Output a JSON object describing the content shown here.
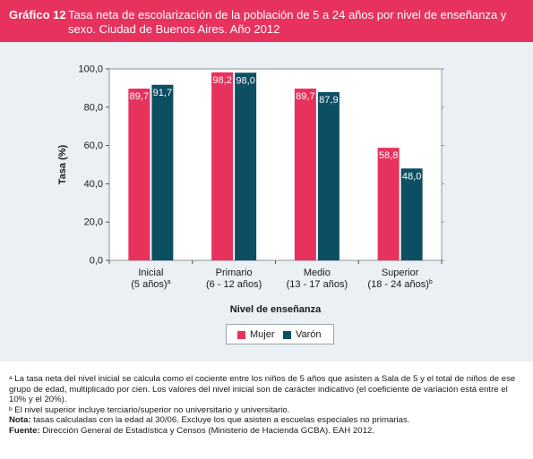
{
  "header": {
    "label": "Gráfico 12",
    "title": "Tasa neta de escolarización de la población de 5 a 24 años por nivel de enseñanza y sexo. Ciudad de Buenos Aires. Año 2012"
  },
  "colors": {
    "mujer": "#e6325d",
    "varon": "#0c4f63",
    "header_bg": "#e6325d",
    "panel_bg": "#eaf0f3"
  },
  "chart_data": {
    "type": "bar",
    "ylabel": "Tasa (%)",
    "xlabel": "Nivel de enseñanza",
    "ylim": [
      0,
      100
    ],
    "yticks": [
      "0,0",
      "20,0",
      "40,0",
      "60,0",
      "80,0",
      "100,0"
    ],
    "categories": [
      {
        "line1": "Inicial",
        "line2": "(5 años)",
        "sup": "a"
      },
      {
        "line1": "Primario",
        "line2": "(6 - 12 años)",
        "sup": ""
      },
      {
        "line1": "Medio",
        "line2": "(13 - 17 años)",
        "sup": ""
      },
      {
        "line1": "Superior",
        "line2": "(18 - 24 años)",
        "sup": "b"
      }
    ],
    "series": [
      {
        "name": "Mujer",
        "values": [
          89.7,
          98.2,
          89.7,
          58.8
        ],
        "labels": [
          "89,7",
          "98,2",
          "89,7",
          "58,8"
        ]
      },
      {
        "name": "Varón",
        "values": [
          91.7,
          98.0,
          87.9,
          48.0
        ],
        "labels": [
          "91,7",
          "98,0",
          "87,9",
          "48,0"
        ]
      }
    ],
    "legend": "bottom",
    "grid": false
  },
  "notes": {
    "a_sup": "a",
    "a_text": " La tasa neta del nivel inicial se calcula como el cociente entre los niños de 5 años que asisten a Sala de 5 y el total de niños de ese grupo de edad, multiplicado por cien. Los valores del nivel inicial son de carácter indicativo (el coeficiente de variación está entre el 10% y el 20%).",
    "b_sup": "b",
    "b_text": " El nivel superior incluye terciario/superior no universitario y universitario.",
    "nota_label": "Nota:",
    "nota_text": " tasas calculadas con la edad al 30/06. Excluye los que asisten a escuelas especiales no primarias.",
    "fuente_label": "Fuente:",
    "fuente_text": " Dirección General de Estadística y Censos (Ministerio de Hacienda GCBA). EAH 2012."
  }
}
